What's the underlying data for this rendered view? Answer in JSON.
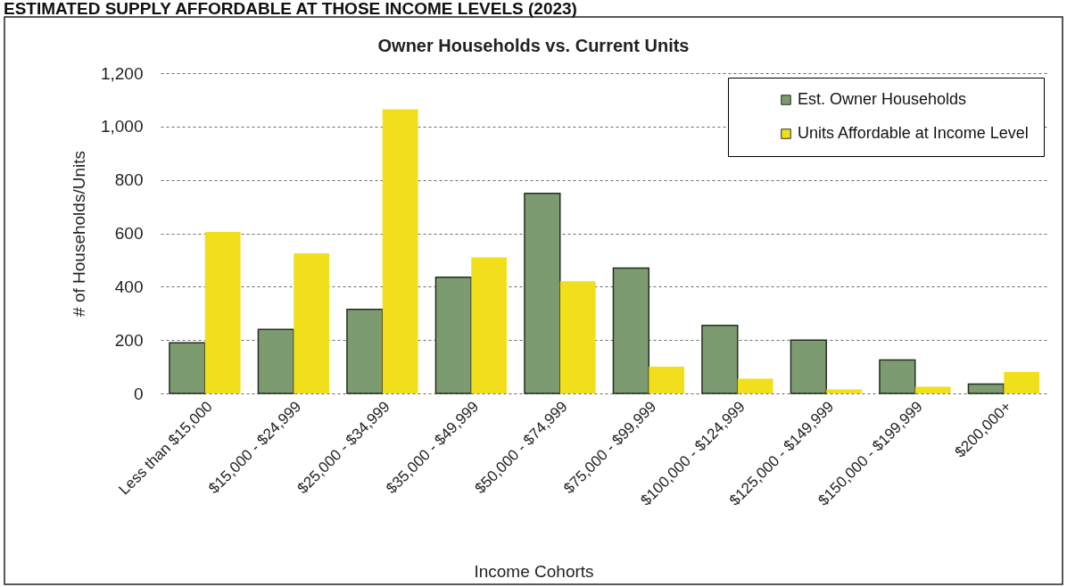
{
  "chart_data": {
    "type": "bar",
    "title": "Owner Households vs. Current Units",
    "xlabel": "Income Cohorts",
    "ylabel": "# of Households/Units",
    "annotations": [
      "ESTIMATED SUPPLY AFFORDABLE AT THOSE INCOME LEVELS (2023)"
    ],
    "categories": [
      "Less than $15,000",
      "$15,000 - $24,999",
      "$25,000 - $34,999",
      "$35,000 - $49,999",
      "$50,000 - $74,999",
      "$75,000 - $99,999",
      "$100,000 - $124,999",
      "$125,000 - $149,999",
      "$150,000 - $199,999",
      "$200,000+"
    ],
    "series": [
      {
        "name": "Est. Owner Households",
        "color": "#7d9b70",
        "values": [
          190,
          240,
          315,
          435,
          750,
          470,
          255,
          200,
          125,
          35
        ]
      },
      {
        "name": "Units Affordable at Income Level",
        "color": "#f2df1b",
        "values": [
          605,
          525,
          1065,
          510,
          420,
          100,
          55,
          15,
          25,
          80
        ]
      }
    ],
    "ylim": [
      0,
      1200
    ],
    "yticks": [
      0,
      200,
      400,
      600,
      800,
      {
        "value": 1000,
        "label": "1,000"
      },
      {
        "value": 1200,
        "label": "1,200"
      }
    ],
    "grid": "y",
    "legend": "top right"
  }
}
